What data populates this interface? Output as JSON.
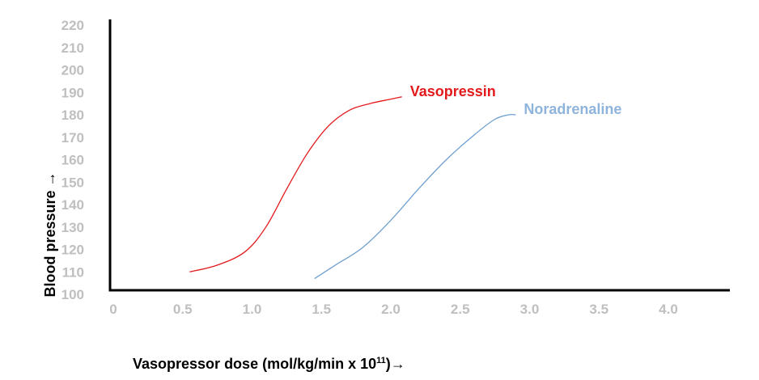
{
  "chart_data": {
    "type": "line",
    "title": "",
    "xlabel": {
      "prefix": "Vasopressor dose  (mol/kg/min x 10",
      "superscript": "11",
      "suffix": ")→"
    },
    "ylabel": "Blood pressure →",
    "xlim": [
      0,
      4.45
    ],
    "ylim": [
      100,
      220
    ],
    "x_ticks": [
      "0",
      "0.5",
      "1.0",
      "1.5",
      "2.0",
      "2.5",
      "3.0",
      "3.5",
      "4.0"
    ],
    "x_tick_values": [
      0,
      0.5,
      1.0,
      1.5,
      2.0,
      2.5,
      3.0,
      3.5,
      4.0
    ],
    "y_ticks": [
      "100",
      "110",
      "120",
      "130",
      "140",
      "150",
      "160",
      "170",
      "180",
      "190",
      "200",
      "210",
      "220"
    ],
    "y_tick_values": [
      100,
      110,
      120,
      130,
      140,
      150,
      160,
      170,
      180,
      190,
      200,
      210,
      220
    ],
    "legend": "inline-labels",
    "grid": false,
    "series": [
      {
        "name": "Vasopressin",
        "color": "#e31a1c",
        "x": [
          0.55,
          0.75,
          0.95,
          1.1,
          1.25,
          1.4,
          1.55,
          1.7,
          1.85,
          2.0,
          2.08
        ],
        "y": [
          110,
          113,
          119,
          130,
          147,
          163,
          175,
          182,
          185,
          187,
          188
        ]
      },
      {
        "name": "Noradrenaline",
        "color": "#6fa0d0",
        "x": [
          1.45,
          1.6,
          1.8,
          2.0,
          2.2,
          2.4,
          2.6,
          2.75,
          2.85,
          2.9
        ],
        "y": [
          107,
          113,
          121,
          133,
          147,
          160,
          171,
          178,
          180,
          180
        ]
      }
    ],
    "annotations": [
      {
        "text": "Vasopressin",
        "series": 0,
        "color": "#e31a1c"
      },
      {
        "text": "Noradrenaline",
        "series": 1,
        "color": "#8fb4db"
      }
    ]
  }
}
